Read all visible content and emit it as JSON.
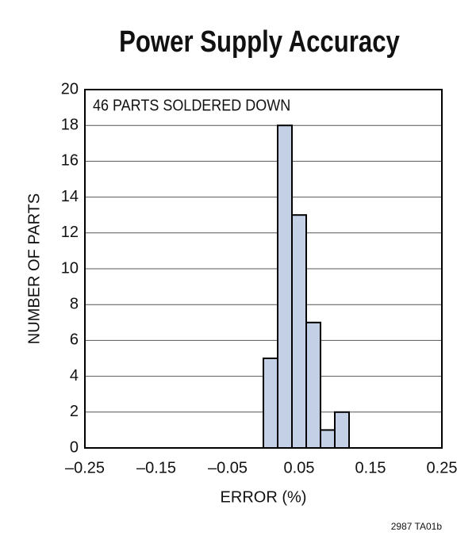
{
  "chart_data": {
    "type": "histogram",
    "title": "Power Supply Accuracy",
    "annotation": "46 PARTS SOLDERED DOWN",
    "footnote": "2987 TA01b",
    "xlabel": "ERROR (%)",
    "ylabel": "NUMBER OF PARTS",
    "bins": [
      0,
      0.02,
      0.04,
      0.06,
      0.08,
      0.1,
      0.12
    ],
    "values": [
      5,
      18,
      13,
      7,
      1,
      2
    ],
    "color": "#c4d0e6",
    "edgecolor": "#000000",
    "xlim": [
      -0.25,
      0.25
    ],
    "xticks": [
      {
        "value": -0.25,
        "label": "–0.25"
      },
      {
        "value": -0.15,
        "label": "–0.15"
      },
      {
        "value": -0.05,
        "label": "–0.05"
      },
      0.05,
      0.15,
      0.25
    ],
    "ylim": [
      0,
      20
    ],
    "yticks": [
      0,
      2,
      4,
      6,
      8,
      10,
      12,
      14,
      16,
      18,
      20
    ],
    "grid": true
  }
}
